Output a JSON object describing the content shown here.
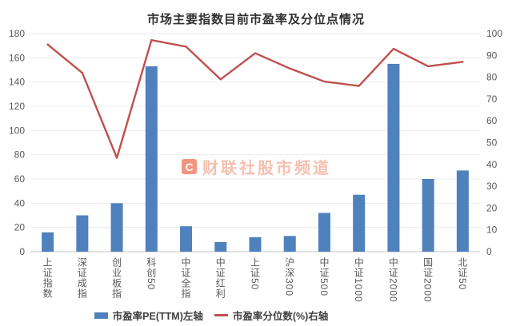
{
  "title": "市场主要指数目前市盈率及分位点情况",
  "watermark": {
    "logo_letter": "C",
    "text": "财联社股市频道"
  },
  "colors": {
    "bar": "#4F81BD",
    "line": "#C0504D",
    "grid": "#ebebeb",
    "axis_line": "#c6c6c6",
    "tick_text": "#595959",
    "watermark": "#e83e18"
  },
  "chart_data": {
    "type": "bar+line combo",
    "title": "市场主要指数目前市盈率及分位点情况",
    "categories": [
      "上证指数",
      "深证成指",
      "创业板指",
      "科创50",
      "中证全指",
      "中证红利",
      "上证50",
      "沪深300",
      "中证500",
      "中证1000",
      "中证2000",
      "国证2000",
      "北证50"
    ],
    "series": [
      {
        "name": "市盈率PE(TTM)左轴",
        "type": "bar",
        "axis": "left",
        "color": "#4F81BD",
        "values": [
          16,
          30,
          40,
          153,
          21,
          8,
          12,
          13,
          32,
          47,
          155,
          60,
          67
        ]
      },
      {
        "name": "市盈率分位数(%)右轴",
        "type": "line",
        "axis": "right",
        "color": "#C0504D",
        "values": [
          95,
          82,
          43,
          97,
          94,
          79,
          91,
          84,
          78,
          76,
          93,
          85,
          87
        ]
      }
    ],
    "left_axis": {
      "min": 0,
      "max": 180,
      "step": 20,
      "label": "市盈率PE(TTM)"
    },
    "right_axis": {
      "min": 0,
      "max": 100,
      "step": 10,
      "label": "市盈率分位数(%)"
    },
    "grid": true,
    "legend_position": "bottom"
  }
}
